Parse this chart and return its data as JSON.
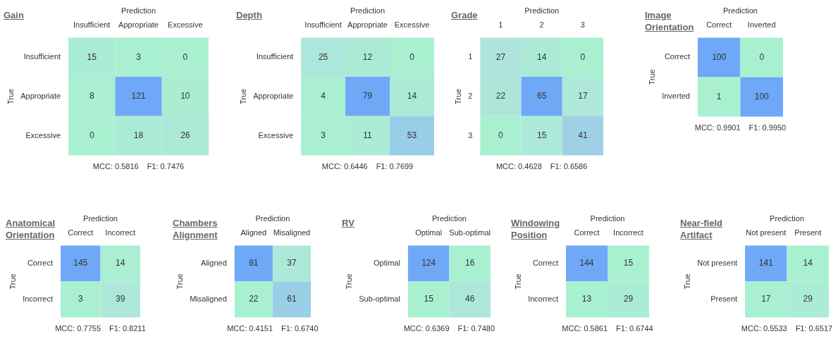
{
  "chart_data": [
    {
      "type": "heatmap",
      "title": "Gain",
      "xlabel": "Prediction",
      "ylabel": "True",
      "categories": [
        "Insufficient",
        "Appropriate",
        "Excessive"
      ],
      "y_categories": [
        "Insufficient",
        "Appropriate",
        "Excessive"
      ],
      "cells": [
        [
          15,
          3,
          0
        ],
        [
          8,
          121,
          10
        ],
        [
          0,
          18,
          26
        ]
      ],
      "annotations": [
        "MCC: 0.5816",
        "F1: 0.7476"
      ],
      "data_labels": true
    },
    {
      "type": "heatmap",
      "title": "Depth",
      "xlabel": "Prediction",
      "ylabel": "True",
      "categories": [
        "Insufficient",
        "Appropriate",
        "Excessive"
      ],
      "y_categories": [
        "Insufficient",
        "Appropriate",
        "Excessive"
      ],
      "cells": [
        [
          25,
          12,
          0
        ],
        [
          4,
          79,
          14
        ],
        [
          3,
          11,
          53
        ]
      ],
      "annotations": [
        "MCC: 0.6446",
        "F1: 0.7699"
      ],
      "data_labels": true
    },
    {
      "type": "heatmap",
      "title": "Grade",
      "xlabel": "Prediction",
      "ylabel": "True",
      "categories": [
        "1",
        "2",
        "3"
      ],
      "y_categories": [
        "1",
        "2",
        "3"
      ],
      "cells": [
        [
          27,
          14,
          0
        ],
        [
          22,
          65,
          17
        ],
        [
          0,
          15,
          41
        ]
      ],
      "annotations": [
        "MCC: 0.4628",
        "F1: 0.6586"
      ],
      "data_labels": true
    },
    {
      "type": "heatmap",
      "title": "Image Orientation",
      "xlabel": "Prediction",
      "ylabel": "True",
      "categories": [
        "Correct",
        "Inverted"
      ],
      "y_categories": [
        "Correct",
        "Inverted"
      ],
      "cells": [
        [
          100,
          0
        ],
        [
          1,
          100
        ]
      ],
      "annotations": [
        "MCC: 0.9901",
        "F1: 0.9950"
      ],
      "data_labels": true
    },
    {
      "type": "heatmap",
      "title": "Anatomical Orientation",
      "xlabel": "Prediction",
      "ylabel": "True",
      "categories": [
        "Correct",
        "Incorrect"
      ],
      "y_categories": [
        "Correct",
        "Incorrect"
      ],
      "cells": [
        [
          145,
          14
        ],
        [
          3,
          39
        ]
      ],
      "annotations": [
        "MCC: 0.7755",
        "F1: 0.8211"
      ],
      "data_labels": true
    },
    {
      "type": "heatmap",
      "title": "Chambers Alignment",
      "xlabel": "Prediction",
      "ylabel": "True",
      "categories": [
        "Aligned",
        "Misaligned"
      ],
      "y_categories": [
        "Aligned",
        "Misaligned"
      ],
      "cells": [
        [
          81,
          37
        ],
        [
          22,
          61
        ]
      ],
      "annotations": [
        "MCC: 0.4151",
        "F1: 0.6740"
      ],
      "data_labels": true
    },
    {
      "type": "heatmap",
      "title": "RV",
      "xlabel": "Prediction",
      "ylabel": "True",
      "categories": [
        "Optimal",
        "Sub-optimal"
      ],
      "y_categories": [
        "Optimal",
        "Sub-optimal"
      ],
      "cells": [
        [
          124,
          16
        ],
        [
          15,
          46
        ]
      ],
      "annotations": [
        "MCC: 0.6369",
        "F1: 0.7480"
      ],
      "data_labels": true
    },
    {
      "type": "heatmap",
      "title": "Windowing Position",
      "xlabel": "Prediction",
      "ylabel": "True",
      "categories": [
        "Correct",
        "Incorrect"
      ],
      "y_categories": [
        "Correct",
        "Incorrect"
      ],
      "cells": [
        [
          144,
          15
        ],
        [
          13,
          29
        ]
      ],
      "annotations": [
        "MCC: 0.5861",
        "F1: 0.6744"
      ],
      "data_labels": true
    },
    {
      "type": "heatmap",
      "title": "Near-field Artifact",
      "xlabel": "Prediction",
      "ylabel": "True",
      "categories": [
        "Not present",
        "Present"
      ],
      "y_categories": [
        "Not present",
        "Present"
      ],
      "cells": [
        [
          141,
          14
        ],
        [
          17,
          29
        ]
      ],
      "annotations": [
        "MCC: 0.5533",
        "F1: 0.6517"
      ],
      "data_labels": true
    }
  ]
}
